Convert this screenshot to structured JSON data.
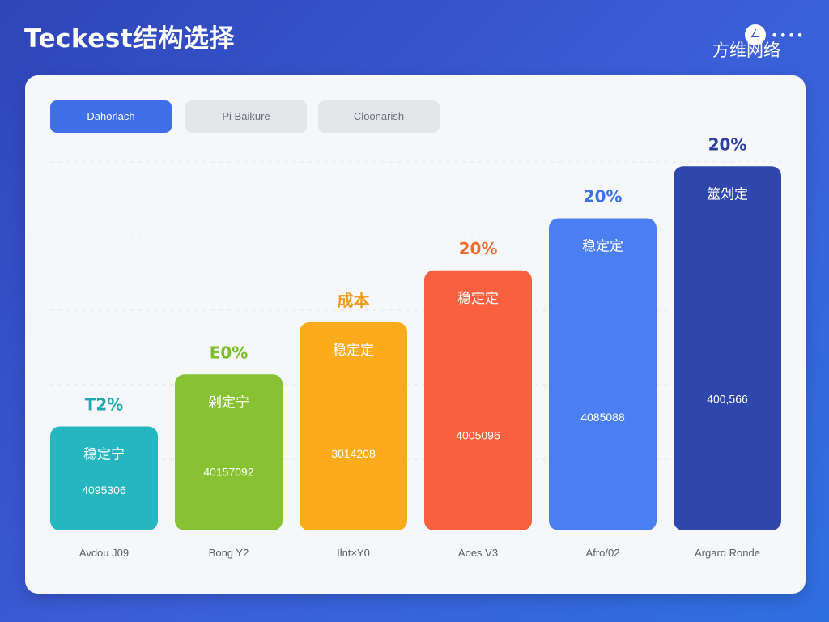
{
  "header": {
    "title": "Teckest结构选择",
    "brand": "方维网络",
    "brand_badge": "ㄥ",
    "menu_dots": "••••"
  },
  "tabs": [
    {
      "label": "Dahorlach",
      "active": true
    },
    {
      "label": "Pi Baikure",
      "active": false
    },
    {
      "label": "Cloonarish",
      "active": false
    }
  ],
  "colors": {
    "accent": "#3f6ee8",
    "bars": [
      "#25b6bf",
      "#86c232",
      "#fbab1c",
      "#f8603f",
      "#4b7ef0",
      "#2f46ad"
    ],
    "top_labels": [
      "#22a8b3",
      "#7bbf2a",
      "#f39a17",
      "#f06a2c",
      "#3b73e6",
      "#2c3fa3"
    ]
  },
  "chart_data": {
    "type": "bar",
    "title": "",
    "xlabel": "",
    "ylabel": "",
    "categories": [
      "Avdou J09",
      "Bong Y2",
      "Ilnt×Y0",
      "Aoes V3",
      "Afro/02",
      "Argard Ronde"
    ],
    "values": [
      32,
      48,
      64,
      80,
      96,
      112
    ],
    "ylim": [
      0,
      130
    ],
    "grid": true,
    "top_labels": [
      "T2%",
      "E0%",
      "成本",
      "20%",
      "20%",
      "20%"
    ],
    "bar_labels": [
      "稳定宁",
      "剁定宁",
      "稳定定",
      "稳定定",
      "稳定定",
      "筮剁定"
    ],
    "bar_values": [
      "4095306",
      "40157092",
      "3014208",
      "4005096",
      "4085088",
      "400,566"
    ]
  }
}
